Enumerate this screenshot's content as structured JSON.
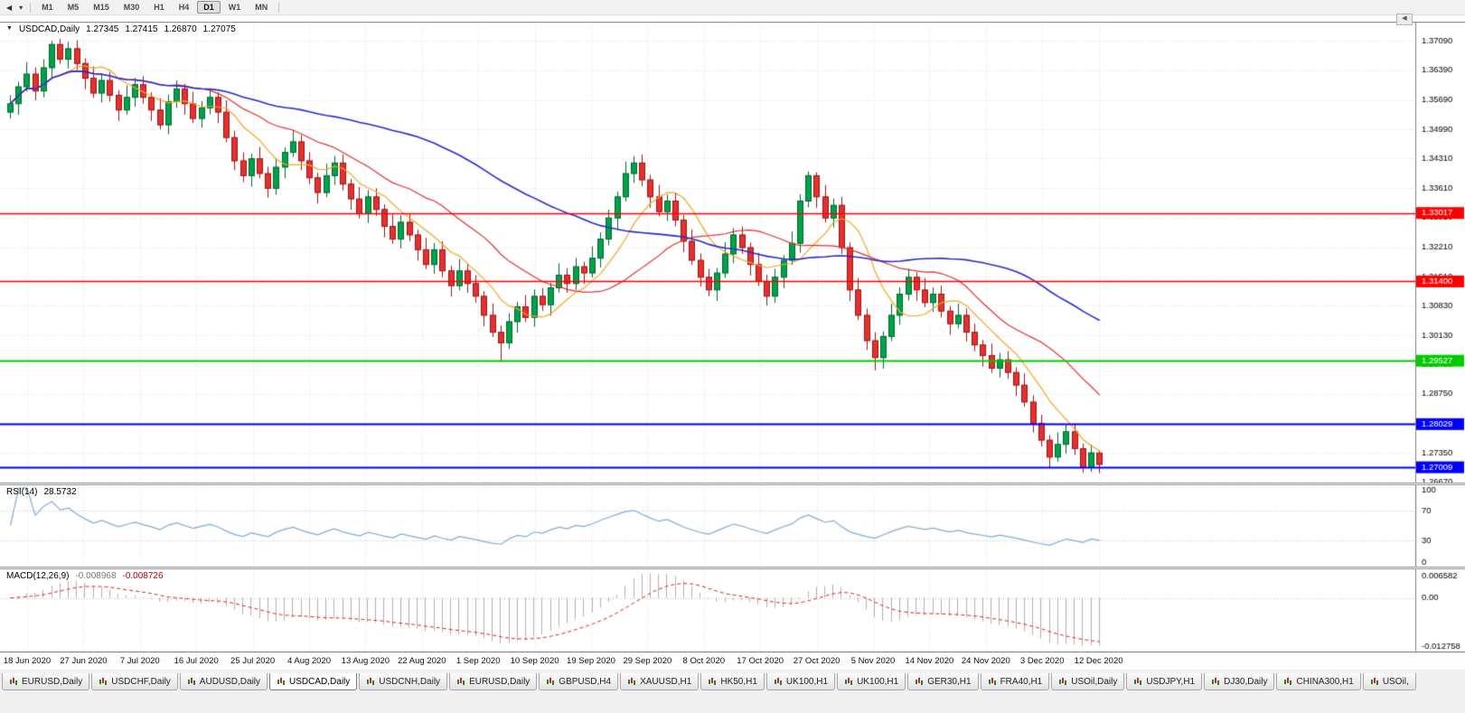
{
  "toolbar": {
    "nav_arrow": "◀",
    "dropdown_arrow": "▾",
    "corner_button": "◀",
    "timeframes": [
      "M1",
      "M5",
      "M15",
      "M30",
      "H1",
      "H4",
      "D1",
      "W1",
      "MN"
    ],
    "active_timeframe": "D1"
  },
  "chart_title": {
    "marker": "▼",
    "symbol": "USDCAD,Daily",
    "open": "1.27345",
    "high": "1.27415",
    "low": "1.26870",
    "close": "1.27075"
  },
  "rsi": {
    "name": "RSI(14)",
    "value": "28.5732",
    "levels": [
      70,
      30
    ],
    "axis": [
      {
        "label": "100",
        "v": 100
      },
      {
        "label": "70",
        "v": 70
      },
      {
        "label": "30",
        "v": 30
      },
      {
        "label": "0",
        "v": 0
      }
    ]
  },
  "macd": {
    "name": "MACD(12,26,9)",
    "value_main": "-0.008968",
    "value_signal": "-0.008726",
    "range": [
      -0.012758,
      0.006582
    ],
    "axis": [
      {
        "label": "0.006582",
        "v": 0.006582
      },
      {
        "label": "0.00",
        "v": 0
      },
      {
        "label": "-0.012758",
        "v": -0.012758
      }
    ]
  },
  "tabs": {
    "active_index": 3,
    "items": [
      "EURUSD,Daily",
      "USDCHF,Daily",
      "AUDUSD,Daily",
      "USDCAD,Daily",
      "USDCNH,Daily",
      "EURUSD,Daily",
      "GBPUSD,H4",
      "XAUUSD,H1",
      "HK50,H1",
      "UK100,H1",
      "UK100,H1",
      "GER30,H1",
      "FRA40,H1",
      "USOil,Daily",
      "USDJPY,H1",
      "DJ30,Daily",
      "CHINA300,H1",
      "USOil,"
    ]
  },
  "colors": {
    "bull": "#00a24a",
    "bull_border": "#00662e",
    "bear": "#e53030",
    "bear_border": "#9c1414",
    "grid": "#dcdcdc",
    "frame": "#808080",
    "rsi_line": "#79aede",
    "macd_histogram": "#b0b0b0",
    "macd_signal": "#e02020"
  },
  "chart_data": {
    "type": "candlestick",
    "symbol": "USDCAD",
    "timeframe": "Daily",
    "title": "USDCAD,Daily",
    "last_ohlc": {
      "open": 1.27345,
      "high": 1.27415,
      "low": 1.2687,
      "close": 1.27075
    },
    "y_range": [
      1.26648,
      1.37538
    ],
    "y_tick_labels": [
      "1.37090",
      "1.36390",
      "1.35690",
      "1.34990",
      "1.34310",
      "1.33610",
      "1.32910",
      "1.32210",
      "1.31510",
      "1.30830",
      "1.30130",
      "1.29430",
      "1.28750",
      "1.28050",
      "1.27350",
      "1.26670"
    ],
    "x_tick_labels": [
      "18 Jun 2020",
      "27 Jun 2020",
      "7 Jul 2020",
      "16 Jul 2020",
      "25 Jul 2020",
      "4 Aug 2020",
      "13 Aug 2020",
      "22 Aug 2020",
      "1 Sep 2020",
      "10 Sep 2020",
      "19 Sep 2020",
      "29 Sep 2020",
      "8 Oct 2020",
      "17 Oct 2020",
      "27 Oct 2020",
      "5 Nov 2020",
      "14 Nov 2020",
      "24 Nov 2020",
      "3 Dec 2020",
      "12 Dec 2020"
    ],
    "overlays": [
      {
        "type": "sma",
        "period": 8,
        "color": "#f5a623"
      },
      {
        "type": "sma",
        "period": 20,
        "color": "#e33030"
      },
      {
        "type": "sma",
        "period": 50,
        "color": "#2a2ad0"
      }
    ],
    "horizontal_lines": [
      {
        "price": 1.33017,
        "label": "1.33017",
        "color": "#ff0000",
        "width": 1.6
      },
      {
        "price": 1.314,
        "label": "1.31400",
        "color": "#ff0000",
        "width": 1.6
      },
      {
        "price": 1.29527,
        "label": "1.29527",
        "color": "#00cc00",
        "width": 2
      },
      {
        "price": 1.28029,
        "label": "1.28029",
        "color": "#0000ff",
        "width": 2
      },
      {
        "price": 1.27009,
        "label": "1.27009",
        "color": "#0000ff",
        "width": 2
      }
    ],
    "ohlc": [
      [
        1.354,
        1.358,
        1.3525,
        1.356
      ],
      [
        1.356,
        1.3612,
        1.3534,
        1.36
      ],
      [
        1.36,
        1.3658,
        1.3589,
        1.363
      ],
      [
        1.363,
        1.3646,
        1.3568,
        1.359
      ],
      [
        1.359,
        1.3665,
        1.3575,
        1.3645
      ],
      [
        1.3645,
        1.3709,
        1.3619,
        1.37
      ],
      [
        1.37,
        1.3713,
        1.3654,
        1.3665
      ],
      [
        1.3665,
        1.3706,
        1.3643,
        1.369
      ],
      [
        1.369,
        1.371,
        1.364,
        1.3655
      ],
      [
        1.3655,
        1.3667,
        1.3594,
        1.362
      ],
      [
        1.362,
        1.3648,
        1.3574,
        1.3585
      ],
      [
        1.3585,
        1.3631,
        1.3563,
        1.3615
      ],
      [
        1.3615,
        1.3635,
        1.3565,
        1.358
      ],
      [
        1.358,
        1.3592,
        1.3519,
        1.3545
      ],
      [
        1.3545,
        1.3603,
        1.3534,
        1.3575
      ],
      [
        1.3575,
        1.3621,
        1.3553,
        1.3605
      ],
      [
        1.3605,
        1.3625,
        1.356,
        1.3575
      ],
      [
        1.3575,
        1.3587,
        1.3519,
        1.3545
      ],
      [
        1.3545,
        1.3573,
        1.3499,
        1.351
      ],
      [
        1.351,
        1.3581,
        1.3488,
        1.3565
      ],
      [
        1.3565,
        1.3615,
        1.355,
        1.3595
      ],
      [
        1.3595,
        1.3607,
        1.3534,
        1.356
      ],
      [
        1.356,
        1.3588,
        1.3514,
        1.3525
      ],
      [
        1.3525,
        1.3566,
        1.3503,
        1.355
      ],
      [
        1.355,
        1.3595,
        1.3535,
        1.3575
      ],
      [
        1.3575,
        1.3587,
        1.3514,
        1.354
      ],
      [
        1.354,
        1.3568,
        1.3469,
        1.348
      ],
      [
        1.348,
        1.3496,
        1.3403,
        1.3425
      ],
      [
        1.3425,
        1.3445,
        1.3375,
        1.339
      ],
      [
        1.339,
        1.3442,
        1.3364,
        1.343
      ],
      [
        1.343,
        1.3458,
        1.3384,
        1.3395
      ],
      [
        1.3395,
        1.3411,
        1.3338,
        1.336
      ],
      [
        1.336,
        1.343,
        1.3345,
        1.341
      ],
      [
        1.341,
        1.3457,
        1.3384,
        1.3445
      ],
      [
        1.3445,
        1.3498,
        1.3434,
        1.347
      ],
      [
        1.347,
        1.3486,
        1.3403,
        1.3425
      ],
      [
        1.3425,
        1.3445,
        1.337,
        1.3385
      ],
      [
        1.3385,
        1.3397,
        1.3324,
        1.335
      ],
      [
        1.335,
        1.3418,
        1.3339,
        1.339
      ],
      [
        1.339,
        1.3436,
        1.3368,
        1.342
      ],
      [
        1.342,
        1.344,
        1.3355,
        1.337
      ],
      [
        1.337,
        1.3382,
        1.3309,
        1.3335
      ],
      [
        1.3335,
        1.3363,
        1.3289,
        1.33
      ],
      [
        1.33,
        1.3356,
        1.3278,
        1.334
      ],
      [
        1.334,
        1.336,
        1.3295,
        1.331
      ],
      [
        1.331,
        1.3322,
        1.3244,
        1.327
      ],
      [
        1.327,
        1.3298,
        1.3229,
        1.324
      ],
      [
        1.324,
        1.3296,
        1.3218,
        1.328
      ],
      [
        1.328,
        1.33,
        1.3235,
        1.325
      ],
      [
        1.325,
        1.3262,
        1.3189,
        1.3215
      ],
      [
        1.3215,
        1.3243,
        1.3169,
        1.318
      ],
      [
        1.318,
        1.3231,
        1.3158,
        1.3215
      ],
      [
        1.3215,
        1.3235,
        1.315,
        1.3165
      ],
      [
        1.3165,
        1.3177,
        1.3104,
        1.313
      ],
      [
        1.313,
        1.3193,
        1.3119,
        1.3165
      ],
      [
        1.3165,
        1.3181,
        1.3113,
        1.3135
      ],
      [
        1.3135,
        1.3155,
        1.309,
        1.3105
      ],
      [
        1.3105,
        1.3117,
        1.3034,
        1.306
      ],
      [
        1.306,
        1.3088,
        1.3009,
        1.302
      ],
      [
        1.302,
        1.3036,
        1.295,
        1.2995
      ],
      [
        1.2995,
        1.3065,
        1.298,
        1.3045
      ],
      [
        1.3045,
        1.3092,
        1.3019,
        1.308
      ],
      [
        1.308,
        1.3108,
        1.3044,
        1.3055
      ],
      [
        1.3055,
        1.3121,
        1.3033,
        1.3105
      ],
      [
        1.3105,
        1.3125,
        1.307,
        1.3085
      ],
      [
        1.3085,
        1.3137,
        1.3059,
        1.3125
      ],
      [
        1.3125,
        1.3183,
        1.3114,
        1.3155
      ],
      [
        1.3155,
        1.3171,
        1.3113,
        1.3135
      ],
      [
        1.3135,
        1.3195,
        1.312,
        1.3175
      ],
      [
        1.3175,
        1.3187,
        1.3134,
        1.316
      ],
      [
        1.316,
        1.3223,
        1.3149,
        1.3195
      ],
      [
        1.3195,
        1.3256,
        1.3173,
        1.324
      ],
      [
        1.324,
        1.331,
        1.3225,
        1.329
      ],
      [
        1.329,
        1.3352,
        1.3264,
        1.334
      ],
      [
        1.334,
        1.3423,
        1.3329,
        1.3395
      ],
      [
        1.3395,
        1.3436,
        1.3373,
        1.342
      ],
      [
        1.342,
        1.344,
        1.3365,
        1.338
      ],
      [
        1.338,
        1.3392,
        1.3314,
        1.334
      ],
      [
        1.334,
        1.3368,
        1.3294,
        1.3305
      ],
      [
        1.3305,
        1.3346,
        1.3283,
        1.333
      ],
      [
        1.333,
        1.335,
        1.327,
        1.3285
      ],
      [
        1.3285,
        1.3297,
        1.3209,
        1.3235
      ],
      [
        1.3235,
        1.3263,
        1.3179,
        1.319
      ],
      [
        1.319,
        1.3206,
        1.3128,
        1.315
      ],
      [
        1.315,
        1.317,
        1.3105,
        1.312
      ],
      [
        1.312,
        1.3172,
        1.3094,
        1.316
      ],
      [
        1.316,
        1.3233,
        1.3149,
        1.3205
      ],
      [
        1.3205,
        1.3266,
        1.3183,
        1.325
      ],
      [
        1.325,
        1.327,
        1.3205,
        1.322
      ],
      [
        1.322,
        1.3232,
        1.3154,
        1.318
      ],
      [
        1.318,
        1.3208,
        1.3129,
        1.314
      ],
      [
        1.314,
        1.3156,
        1.3083,
        1.3105
      ],
      [
        1.3105,
        1.317,
        1.309,
        1.315
      ],
      [
        1.315,
        1.3202,
        1.3124,
        1.319
      ],
      [
        1.319,
        1.3258,
        1.3179,
        1.323
      ],
      [
        1.323,
        1.3346,
        1.3208,
        1.333
      ],
      [
        1.333,
        1.34,
        1.3315,
        1.339
      ],
      [
        1.339,
        1.3398,
        1.3314,
        1.334
      ],
      [
        1.334,
        1.3368,
        1.3279,
        1.329
      ],
      [
        1.329,
        1.3336,
        1.3268,
        1.332
      ],
      [
        1.332,
        1.334,
        1.3205,
        1.322
      ],
      [
        1.322,
        1.3232,
        1.3094,
        1.312
      ],
      [
        1.312,
        1.3148,
        1.3049,
        1.306
      ],
      [
        1.306,
        1.3076,
        1.2978,
        1.3
      ],
      [
        1.3,
        1.302,
        1.293,
        1.296
      ],
      [
        1.296,
        1.3022,
        1.2934,
        1.301
      ],
      [
        1.301,
        1.3088,
        1.2999,
        1.306
      ],
      [
        1.306,
        1.3126,
        1.3038,
        1.311
      ],
      [
        1.311,
        1.317,
        1.3095,
        1.315
      ],
      [
        1.315,
        1.3162,
        1.3094,
        1.312
      ],
      [
        1.312,
        1.3148,
        1.3079,
        1.309
      ],
      [
        1.309,
        1.3126,
        1.3068,
        1.311
      ],
      [
        1.311,
        1.313,
        1.3055,
        1.307
      ],
      [
        1.307,
        1.3082,
        1.3014,
        1.304
      ],
      [
        1.304,
        1.3088,
        1.3029,
        1.306
      ],
      [
        1.306,
        1.3076,
        1.2998,
        1.302
      ],
      [
        1.302,
        1.304,
        1.2975,
        1.299
      ],
      [
        1.299,
        1.3002,
        1.2939,
        1.2965
      ],
      [
        1.2965,
        1.2993,
        1.2924,
        1.2935
      ],
      [
        1.2935,
        1.2971,
        1.2913,
        1.2955
      ],
      [
        1.2955,
        1.2975,
        1.291,
        1.2925
      ],
      [
        1.2925,
        1.2937,
        1.2869,
        1.2895
      ],
      [
        1.2895,
        1.2923,
        1.2844,
        1.2855
      ],
      [
        1.2855,
        1.2871,
        1.2783,
        1.2805
      ],
      [
        1.2805,
        1.2825,
        1.275,
        1.2765
      ],
      [
        1.2765,
        1.2777,
        1.2699,
        1.2725
      ],
      [
        1.2725,
        1.2783,
        1.2714,
        1.2755
      ],
      [
        1.2755,
        1.2801,
        1.2733,
        1.2785
      ],
      [
        1.2785,
        1.2805,
        1.273,
        1.2745
      ],
      [
        1.2745,
        1.2757,
        1.2688,
        1.27
      ],
      [
        1.27,
        1.2755,
        1.269,
        1.2735
      ],
      [
        1.27345,
        1.27415,
        1.2687,
        1.27075
      ]
    ]
  }
}
